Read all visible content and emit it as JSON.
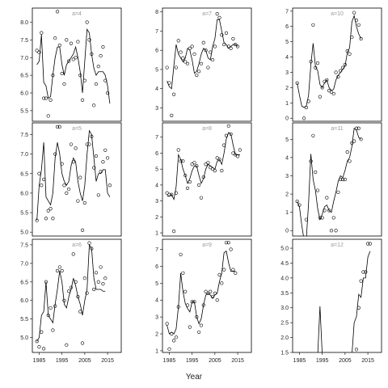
{
  "x_label": "Year",
  "chart_data": [
    {
      "type": "scatter",
      "title": "a=4",
      "xlim": [
        1982,
        2021
      ],
      "ylim": [
        5.2,
        8.4
      ],
      "yticks": [
        5.5,
        {
          "value": 6,
          "label": "6.0"
        },
        6.5,
        {
          "value": 7,
          "label": "7.0"
        },
        7.5,
        {
          "value": 8,
          "label": "8.0"
        }
      ],
      "x": [
        1984,
        1985,
        1986,
        1987,
        1988,
        1989,
        1990,
        1991,
        1992,
        1993,
        1994,
        1995,
        1996,
        1997,
        1998,
        1999,
        2000,
        2001,
        2002,
        2003,
        2004,
        2005,
        2006,
        2007,
        2008,
        2009,
        2010,
        2011,
        2012,
        2013,
        2014,
        2015,
        2016
      ],
      "values": [
        7.2,
        7.15,
        7.7,
        5.85,
        5.85,
        5.35,
        5.8,
        6.5,
        7.55,
        8.3,
        7.35,
        6.55,
        6.25,
        7.5,
        6.9,
        7.4,
        6.95,
        7.0,
        7.45,
        6.5,
        5.8,
        6.35,
        8.0,
        7.5,
        7.1,
        5.65,
        6.25,
        6.75,
        7.05,
        7.3,
        6.35,
        6.0,
        null
      ],
      "line": [
        6.8,
        6.9,
        7.65,
        6.3,
        6.2,
        5.85,
        5.9,
        6.5,
        7.0,
        7.3,
        7.3,
        6.8,
        6.5,
        6.8,
        6.9,
        7.0,
        7.1,
        7.3,
        7.0,
        6.6,
        6.0,
        6.9,
        7.8,
        7.7,
        7.1,
        6.7,
        6.5,
        6.6,
        6.6,
        6.6,
        6.5,
        6.2,
        5.7
      ]
    },
    {
      "type": "scatter",
      "title": "a=7",
      "xlim": [
        1982,
        2021
      ],
      "ylim": [
        2.3,
        8.2
      ],
      "yticks": [
        3,
        4,
        5,
        6,
        7,
        8
      ],
      "x": [
        1984,
        1985,
        1986,
        1987,
        1988,
        1989,
        1990,
        1991,
        1992,
        1993,
        1994,
        1995,
        1996,
        1997,
        1998,
        1999,
        2000,
        2001,
        2002,
        2003,
        2004,
        2005,
        2006,
        2007,
        2008,
        2009,
        2010,
        2011,
        2012,
        2013,
        2014,
        2015,
        2016
      ],
      "values": [
        5.1,
        4.3,
        2.6,
        3.7,
        5.1,
        6.5,
        5.9,
        5.6,
        5.4,
        5.3,
        6.1,
        6.2,
        5.8,
        4.7,
        4.9,
        5.3,
        6.4,
        6.0,
        5.1,
        5.9,
        5.5,
        6.2,
        7.9,
        7.7,
        6.8,
        6.3,
        6.9,
        6.2,
        6.1,
        6.6,
        6.3,
        6.2,
        null
      ],
      "line": [
        4.4,
        4.1,
        4.0,
        5.2,
        6.3,
        5.8,
        5.6,
        5.4,
        5.6,
        6.1,
        6.0,
        5.5,
        4.8,
        4.9,
        5.3,
        5.8,
        6.1,
        6.0,
        5.6,
        5.5,
        6.2,
        6.6,
        7.6,
        7.6,
        7.0,
        6.4,
        6.3,
        6.1,
        6.2,
        6.3,
        6.3,
        6.2,
        null
      ]
    },
    {
      "type": "scatter",
      "title": "a=10",
      "xlim": [
        1982,
        2021
      ],
      "ylim": [
        -0.2,
        7.2
      ],
      "yticks": [
        0,
        1,
        2,
        3,
        4,
        5,
        6,
        7
      ],
      "x": [
        1984,
        1985,
        1986,
        1987,
        1988,
        1989,
        1990,
        1991,
        1992,
        1993,
        1994,
        1995,
        1996,
        1997,
        1998,
        1999,
        2000,
        2001,
        2002,
        2003,
        2004,
        2005,
        2006,
        2007,
        2008,
        2009,
        2010,
        2011,
        2012,
        2013,
        2014,
        2015,
        2016
      ],
      "values": [
        2.3,
        null,
        null,
        0.0,
        0.7,
        1.1,
        3.7,
        6.1,
        3.3,
        3.6,
        1.4,
        2.0,
        2.4,
        2.5,
        1.8,
        1.7,
        1.6,
        3.0,
        2.7,
        3.1,
        3.3,
        3.5,
        4.4,
        4.2,
        5.3,
        6.9,
        6.4,
        6.1,
        5.2,
        null,
        null,
        null,
        null
      ],
      "line": [
        2.3,
        1.5,
        0.8,
        0.7,
        0.8,
        1.5,
        3.5,
        4.9,
        3.4,
        3.1,
        2.2,
        2.0,
        2.3,
        2.5,
        2.0,
        1.8,
        1.9,
        2.5,
        2.8,
        3.0,
        3.2,
        3.4,
        4.3,
        4.6,
        6.3,
        6.7,
        6.0,
        5.5,
        5.2,
        null,
        null,
        null,
        null
      ]
    },
    {
      "type": "scatter",
      "title": "a=5",
      "xlim": [
        1982,
        2021
      ],
      "ylim": [
        4.9,
        7.8
      ],
      "yticks": [
        {
          "value": 5,
          "label": "5.0"
        },
        5.5,
        {
          "value": 6,
          "label": "6.0"
        },
        6.5,
        {
          "value": 7,
          "label": "7.0"
        },
        7.5
      ],
      "x": [
        1984,
        1985,
        1986,
        1987,
        1988,
        1989,
        1990,
        1991,
        1992,
        1993,
        1994,
        1995,
        1996,
        1997,
        1998,
        1999,
        2000,
        2001,
        2002,
        2003,
        2004,
        2005,
        2006,
        2007,
        2008,
        2009,
        2010,
        2011,
        2012,
        2013,
        2014,
        2015,
        2016
      ],
      "values": [
        5.3,
        6.5,
        6.2,
        6.35,
        5.35,
        5.55,
        5.6,
        5.35,
        7.0,
        7.7,
        7.7,
        6.75,
        6.2,
        6.0,
        6.1,
        7.25,
        6.8,
        7.15,
        5.8,
        6.4,
        5.05,
        5.75,
        7.25,
        7.25,
        7.45,
        6.65,
        6.95,
        5.95,
        6.55,
        6.8,
        7.1,
        6.9,
        6.2
      ],
      "line": [
        5.3,
        6.2,
        6.6,
        7.3,
        5.9,
        5.8,
        5.7,
        6.0,
        6.9,
        7.3,
        7.0,
        6.5,
        6.3,
        6.2,
        6.3,
        6.7,
        6.9,
        6.8,
        6.3,
        6.0,
        5.8,
        6.2,
        7.0,
        7.6,
        7.5,
        6.9,
        6.3,
        6.5,
        6.5,
        6.6,
        6.6,
        6.0,
        5.9
      ]
    },
    {
      "type": "scatter",
      "title": "a=8",
      "xlim": [
        1982,
        2021
      ],
      "ylim": [
        0.8,
        7.9
      ],
      "yticks": [
        1,
        2,
        3,
        4,
        5,
        6,
        7
      ],
      "x": [
        1984,
        1985,
        1986,
        1987,
        1988,
        1989,
        1990,
        1991,
        1992,
        1993,
        1994,
        1995,
        1996,
        1997,
        1998,
        1999,
        2000,
        2001,
        2002,
        2003,
        2004,
        2005,
        2006,
        2007,
        2008,
        2009,
        2010,
        2011,
        2012,
        2013,
        2014,
        2015,
        2016
      ],
      "values": [
        3.5,
        3.4,
        3.4,
        1.1,
        3.5,
        6.2,
        5.5,
        5.5,
        4.6,
        3.8,
        4.2,
        5.3,
        5.4,
        5.2,
        4.0,
        3.2,
        4.5,
        5.3,
        5.4,
        5.1,
        5.0,
        4.9,
        5.7,
        5.6,
        4.9,
        6.5,
        7.1,
        7.7,
        7.2,
        6.0,
        5.9,
        5.8,
        6.2
      ],
      "line": [
        3.3,
        3.3,
        3.4,
        3.1,
        3.9,
        5.9,
        5.6,
        5.0,
        4.6,
        4.1,
        4.4,
        4.9,
        5.2,
        5.2,
        4.6,
        4.1,
        4.4,
        5.0,
        5.3,
        5.2,
        5.1,
        5.0,
        5.5,
        5.6,
        5.3,
        6.0,
        6.9,
        7.3,
        7.2,
        6.5,
        5.9,
        5.9,
        5.9
      ]
    },
    {
      "type": "scatter",
      "title": "a=11",
      "xlim": [
        1982,
        2021
      ],
      "ylim": [
        -0.3,
        5.9
      ],
      "yticks": [
        0,
        1,
        2,
        3,
        4,
        5
      ],
      "x": [
        1984,
        1985,
        1986,
        1987,
        1988,
        1989,
        1990,
        1991,
        1992,
        1993,
        1994,
        1995,
        1996,
        1997,
        1998,
        1999,
        2000,
        2001,
        2002,
        2003,
        2004,
        2005,
        2006,
        2007,
        2008,
        2009,
        2010,
        2011,
        2012,
        2013,
        2014,
        2015,
        2016
      ],
      "values": [
        1.6,
        1.4,
        null,
        null,
        0.6,
        null,
        3.8,
        5.2,
        3.2,
        2.2,
        0.7,
        0.7,
        1.1,
        1.8,
        1.1,
        0.0,
        0.7,
        0.0,
        2.1,
        2.8,
        2.8,
        2.8,
        4.3,
        3.8,
        4.8,
        4.9,
        5.6,
        5.6,
        5.0,
        null,
        null,
        null,
        null
      ],
      "line": [
        1.6,
        1.3,
        0.3,
        -0.5,
        -0.5,
        1.5,
        4.2,
        2.8,
        2.2,
        1.2,
        0.6,
        0.9,
        1.3,
        1.4,
        1.1,
        1.0,
        1.6,
        2.1,
        2.7,
        3.0,
        2.9,
        3.3,
        3.8,
        4.0,
        4.6,
        5.6,
        5.5,
        5.1,
        5.0,
        null,
        null,
        null,
        null
      ]
    },
    {
      "type": "scatter",
      "title": "a=6",
      "xlim": [
        1982,
        2021
      ],
      "ylim": [
        4.6,
        7.65
      ],
      "yticks": [
        {
          "value": 5,
          "label": "5.0"
        },
        5.5,
        {
          "value": 6,
          "label": "6.0"
        },
        6.5,
        {
          "value": 7,
          "label": "7.0"
        },
        7.5
      ],
      "xticks": [
        1985,
        1995,
        2005,
        2015
      ],
      "x": [
        1984,
        1985,
        1986,
        1987,
        1988,
        1989,
        1990,
        1991,
        1992,
        1993,
        1994,
        1995,
        1996,
        1997,
        1998,
        1999,
        2000,
        2001,
        2002,
        2003,
        2004,
        2005,
        2006,
        2007,
        2008,
        2009,
        2010,
        2011,
        2012,
        2013,
        2014,
        2015,
        2016
      ],
      "values": [
        4.9,
        4.75,
        5.15,
        4.7,
        6.5,
        5.6,
        5.8,
        5.2,
        5.85,
        6.8,
        6.9,
        6.8,
        6.0,
        4.8,
        6.25,
        6.35,
        7.25,
        6.5,
        6.1,
        5.7,
        4.85,
        6.6,
        6.2,
        7.55,
        7.4,
        6.3,
        6.75,
        6.5,
        6.9,
        6.45,
        6.6,
        null,
        null
      ],
      "line": [
        4.9,
        5.0,
        5.6,
        5.7,
        6.5,
        5.6,
        5.5,
        5.4,
        5.9,
        6.3,
        6.8,
        6.5,
        5.9,
        5.8,
        6.1,
        6.3,
        6.6,
        6.4,
        6.1,
        5.9,
        5.6,
        6.0,
        6.3,
        7.5,
        7.4,
        6.6,
        6.3,
        6.3,
        6.3,
        6.25,
        6.25,
        null,
        null
      ]
    },
    {
      "type": "scatter",
      "title": "a=9",
      "xlim": [
        1982,
        2021
      ],
      "ylim": [
        0.9,
        7.6
      ],
      "yticks": [
        1,
        2,
        3,
        4,
        5,
        6,
        7
      ],
      "xticks": [
        1985,
        1995,
        2005,
        2015
      ],
      "x": [
        1984,
        1985,
        1986,
        1987,
        1988,
        1989,
        1990,
        1991,
        1992,
        1993,
        1994,
        1995,
        1996,
        1997,
        1998,
        1999,
        2000,
        2001,
        2002,
        2003,
        2004,
        2005,
        2006,
        2007,
        2008,
        2009,
        2010,
        2011,
        2012,
        2013,
        2014,
        2015,
        2016
      ],
      "values": [
        2.6,
        1.1,
        2.0,
        1.6,
        1.8,
        3.6,
        6.7,
        5.6,
        4.5,
        3.7,
        2.4,
        3.9,
        3.9,
        3.0,
        2.1,
        2.5,
        3.7,
        4.5,
        4.4,
        4.5,
        4.2,
        4.4,
        4.0,
        5.5,
        5.0,
        5.8,
        7.4,
        7.4,
        7.0,
        5.8,
        5.6,
        null,
        null
      ],
      "line": [
        2.5,
        2.0,
        2.1,
        2.0,
        2.3,
        3.6,
        5.6,
        4.5,
        3.8,
        3.5,
        3.3,
        3.9,
        3.9,
        3.0,
        2.6,
        2.9,
        3.7,
        4.3,
        4.4,
        4.3,
        4.1,
        4.3,
        4.4,
        5.1,
        5.6,
        6.8,
        6.9,
        6.2,
        5.7,
        5.7,
        5.7,
        null,
        null
      ]
    },
    {
      "type": "scatter",
      "title": "a=12",
      "xlim": [
        1982,
        2021
      ],
      "ylim": [
        1.5,
        5.3
      ],
      "yticks": [
        1.5,
        {
          "value": 2,
          "label": "2.0"
        },
        2.5,
        {
          "value": 3,
          "label": "3.0"
        },
        3.5,
        {
          "value": 4,
          "label": "4.0"
        },
        4.5,
        {
          "value": 5,
          "label": "5.0"
        }
      ],
      "xticks": [
        1985,
        1995,
        2005,
        2015
      ],
      "x": [
        1984,
        1985,
        1986,
        1987,
        1988,
        1989,
        1990,
        1991,
        1992,
        1993,
        1994,
        1995,
        1996,
        1997,
        1998,
        1999,
        2000,
        2001,
        2002,
        2003,
        2004,
        2005,
        2006,
        2007,
        2008,
        2009,
        2010,
        2011,
        2012,
        2013,
        2014,
        2015,
        2016
      ],
      "values": [
        null,
        null,
        null,
        null,
        null,
        null,
        null,
        null,
        null,
        null,
        null,
        null,
        null,
        null,
        null,
        null,
        null,
        null,
        null,
        null,
        null,
        null,
        null,
        null,
        null,
        null,
        1.6,
        3.0,
        3.9,
        4.2,
        4.2,
        5.15,
        5.15
      ],
      "line": [
        1.4,
        1.4,
        1.4,
        1.4,
        1.4,
        1.4,
        1.4,
        1.4,
        1.4,
        1.4,
        3.05,
        1.4,
        1.4,
        1.4,
        1.4,
        1.4,
        1.4,
        1.4,
        1.4,
        1.4,
        1.4,
        1.4,
        1.4,
        1.4,
        1.4,
        2.5,
        2.7,
        3.45,
        3.35,
        4.0,
        4.0,
        4.7,
        4.9
      ]
    }
  ]
}
